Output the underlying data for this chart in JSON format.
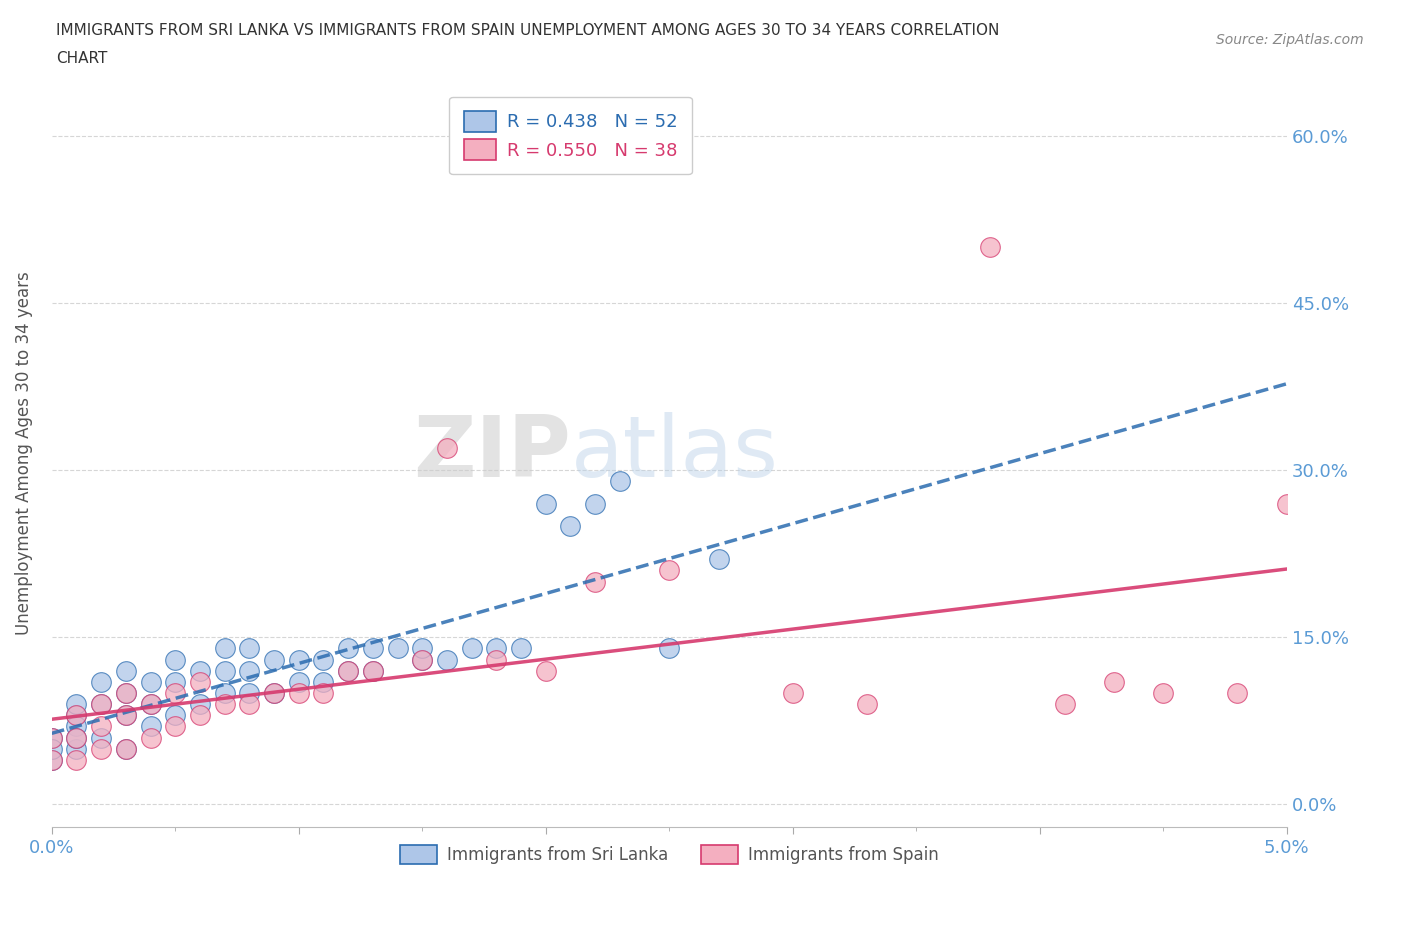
{
  "title_line1": "IMMIGRANTS FROM SRI LANKA VS IMMIGRANTS FROM SPAIN UNEMPLOYMENT AMONG AGES 30 TO 34 YEARS CORRELATION",
  "title_line2": "CHART",
  "source": "Source: ZipAtlas.com",
  "xlim": [
    0.0,
    0.05
  ],
  "ylim": [
    -0.02,
    0.65
  ],
  "ylabel": "Unemployment Among Ages 30 to 34 years",
  "watermark_zip": "ZIP",
  "watermark_atlas": "atlas",
  "legend_r1": "R = 0.438",
  "legend_n1": "N = 52",
  "legend_r2": "R = 0.550",
  "legend_n2": "N = 38",
  "sri_lanka_color": "#aec6e8",
  "spain_color": "#f4afc0",
  "trendline1_color": "#2b6cb0",
  "trendline2_color": "#d63a6e",
  "ytick_color": "#5b9bd5",
  "xtick_color": "#5b9bd5",
  "sri_lanka_x": [
    0.0,
    0.0,
    0.0,
    0.001,
    0.001,
    0.001,
    0.001,
    0.001,
    0.002,
    0.002,
    0.002,
    0.003,
    0.003,
    0.003,
    0.003,
    0.004,
    0.004,
    0.004,
    0.005,
    0.005,
    0.005,
    0.006,
    0.006,
    0.007,
    0.007,
    0.007,
    0.008,
    0.008,
    0.008,
    0.009,
    0.009,
    0.01,
    0.01,
    0.011,
    0.011,
    0.012,
    0.012,
    0.013,
    0.013,
    0.014,
    0.015,
    0.015,
    0.016,
    0.017,
    0.018,
    0.019,
    0.02,
    0.021,
    0.022,
    0.023,
    0.025,
    0.027
  ],
  "sri_lanka_y": [
    0.04,
    0.06,
    0.05,
    0.05,
    0.08,
    0.07,
    0.09,
    0.06,
    0.06,
    0.09,
    0.11,
    0.05,
    0.08,
    0.1,
    0.12,
    0.07,
    0.09,
    0.11,
    0.08,
    0.11,
    0.13,
    0.09,
    0.12,
    0.1,
    0.12,
    0.14,
    0.1,
    0.12,
    0.14,
    0.1,
    0.13,
    0.11,
    0.13,
    0.11,
    0.13,
    0.12,
    0.14,
    0.12,
    0.14,
    0.14,
    0.13,
    0.14,
    0.13,
    0.14,
    0.14,
    0.14,
    0.27,
    0.25,
    0.27,
    0.29,
    0.14,
    0.22
  ],
  "spain_x": [
    0.0,
    0.0,
    0.001,
    0.001,
    0.001,
    0.002,
    0.002,
    0.002,
    0.003,
    0.003,
    0.003,
    0.004,
    0.004,
    0.005,
    0.005,
    0.006,
    0.006,
    0.007,
    0.008,
    0.009,
    0.01,
    0.011,
    0.012,
    0.013,
    0.015,
    0.016,
    0.018,
    0.02,
    0.022,
    0.025,
    0.03,
    0.033,
    0.038,
    0.041,
    0.043,
    0.045,
    0.048,
    0.05
  ],
  "spain_y": [
    0.04,
    0.06,
    0.04,
    0.06,
    0.08,
    0.05,
    0.07,
    0.09,
    0.05,
    0.08,
    0.1,
    0.06,
    0.09,
    0.07,
    0.1,
    0.08,
    0.11,
    0.09,
    0.09,
    0.1,
    0.1,
    0.1,
    0.12,
    0.12,
    0.13,
    0.32,
    0.13,
    0.12,
    0.2,
    0.21,
    0.1,
    0.09,
    0.5,
    0.09,
    0.11,
    0.1,
    0.1,
    0.27
  ]
}
